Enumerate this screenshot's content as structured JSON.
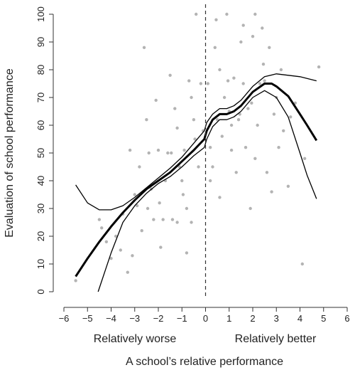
{
  "chart_data": {
    "type": "scatter",
    "xlabel": "A school’s relative performance",
    "ylabel": "Evaluation of school performance",
    "xlim": [
      -6,
      6
    ],
    "ylim": [
      0,
      100
    ],
    "xticks": [
      -6,
      -5,
      -4,
      -3,
      -2,
      -1,
      0,
      1,
      2,
      3,
      4,
      5,
      6
    ],
    "yticks": [
      0,
      10,
      20,
      30,
      40,
      50,
      60,
      70,
      80,
      90,
      100
    ],
    "group_labels": {
      "left": "Relatively worse",
      "right": "Relatively better"
    },
    "reference_line": {
      "x": 0,
      "style": "dashed"
    },
    "colors": {
      "points": "#b3b3b3",
      "fit": "#000000",
      "axis": "#333333"
    },
    "series": [
      {
        "type": "line",
        "role": "fit",
        "x": [
          -5.5,
          -5.0,
          -4.5,
          -4.0,
          -3.5,
          -3.0,
          -2.5,
          -2.0,
          -1.5,
          -1.0,
          -0.5,
          -0.05,
          0.05,
          0.3,
          0.6,
          0.9,
          1.2,
          1.5,
          2.0,
          2.5,
          2.8,
          3.0,
          3.5,
          4.0,
          4.3,
          4.7
        ],
        "y": [
          5.5,
          12.0,
          18.0,
          23.5,
          28.5,
          33.0,
          37.0,
          40.0,
          43.0,
          47.0,
          51.0,
          55.0,
          58.0,
          62.0,
          64.0,
          64.0,
          65.0,
          67.0,
          72.0,
          75.0,
          75.0,
          74.0,
          70.5,
          64.0,
          60.0,
          54.5
        ]
      },
      {
        "type": "line",
        "role": "ci_upper",
        "x": [
          -5.5,
          -5.0,
          -4.5,
          -4.0,
          -3.5,
          -3.0,
          -2.5,
          -2.0,
          -1.5,
          -1.0,
          -0.5,
          -0.05,
          0.05,
          0.3,
          0.6,
          0.9,
          1.2,
          1.5,
          2.0,
          2.5,
          3.0,
          3.5,
          4.0,
          4.7
        ],
        "y": [
          38.5,
          32.0,
          29.5,
          29.5,
          31.0,
          34.0,
          37.5,
          41.0,
          44.5,
          48.5,
          53.5,
          58.0,
          61.0,
          64.0,
          66.0,
          66.0,
          67.0,
          69.0,
          74.0,
          77.5,
          78.5,
          78.0,
          77.5,
          76.0
        ]
      },
      {
        "type": "line",
        "role": "ci_lower",
        "x": [
          -4.55,
          -4.0,
          -3.5,
          -3.0,
          -2.5,
          -2.0,
          -1.5,
          -1.0,
          -0.5,
          -0.05,
          0.05,
          0.3,
          0.6,
          0.9,
          1.2,
          1.5,
          2.0,
          2.5,
          3.0,
          3.5,
          4.0,
          4.3,
          4.7
        ],
        "y": [
          0.0,
          14.0,
          25.0,
          31.0,
          35.5,
          39.0,
          41.5,
          45.0,
          49.0,
          52.0,
          55.0,
          59.5,
          62.0,
          62.0,
          63.0,
          65.0,
          70.0,
          72.5,
          70.0,
          63.0,
          50.0,
          42.0,
          33.5
        ]
      },
      {
        "type": "scatter",
        "role": "observations",
        "x": [
          -5.5,
          -4.5,
          -4.4,
          -4.2,
          -4.0,
          -3.8,
          -3.6,
          -3.5,
          -3.3,
          -3.2,
          -3.0,
          -2.9,
          -2.8,
          -2.6,
          -2.5,
          -2.4,
          -2.3,
          -2.2,
          -2.1,
          -2.0,
          -1.9,
          -1.8,
          -1.7,
          -1.6,
          -1.5,
          -1.4,
          -1.3,
          -1.2,
          -1.1,
          -1.0,
          -0.9,
          -0.8,
          -0.7,
          -0.6,
          -0.5,
          -0.4,
          -0.3,
          -0.2,
          -0.1,
          0.1,
          0.2,
          0.3,
          0.4,
          0.5,
          0.6,
          0.7,
          0.8,
          0.9,
          1.0,
          1.1,
          1.2,
          1.3,
          1.4,
          1.5,
          1.6,
          1.7,
          1.8,
          1.9,
          2.0,
          2.1,
          2.2,
          2.3,
          2.4,
          2.5,
          2.6,
          2.7,
          2.8,
          2.9,
          3.0,
          3.1,
          3.2,
          3.3,
          3.5,
          3.6,
          3.8,
          4.1,
          4.2,
          4.8,
          -3.1,
          -2.7,
          -2.45,
          -1.95,
          -1.45,
          -0.95,
          -0.45,
          0.45,
          0.95,
          1.45,
          1.95,
          2.45,
          -1.2,
          -0.8,
          -0.6,
          0.2,
          0.6,
          1.1,
          1.6,
          2.1
        ],
        "y": [
          4,
          26,
          23,
          18,
          12,
          20,
          15,
          28,
          7,
          51,
          35,
          31,
          45,
          88,
          62,
          50,
          37,
          26,
          69,
          51,
          16,
          26,
          40,
          50,
          78,
          26,
          66,
          25,
          45,
          40,
          51,
          30,
          76,
          25,
          62,
          100,
          45,
          75,
          58,
          75,
          52,
          45,
          88,
          62,
          80,
          56,
          70,
          100,
          65,
          51,
          77,
          43,
          62,
          90,
          75,
          52,
          66,
          30,
          92,
          100,
          60,
          75,
          95,
          76,
          43,
          88,
          36,
          64,
          70,
          52,
          80,
          58,
          38,
          63,
          68,
          10,
          48,
          81,
          13,
          22,
          30,
          32,
          50,
          35,
          55,
          98,
          76,
          64,
          68,
          82,
          59,
          14,
          70,
          40,
          34,
          60,
          96,
          48
        ]
      }
    ]
  }
}
